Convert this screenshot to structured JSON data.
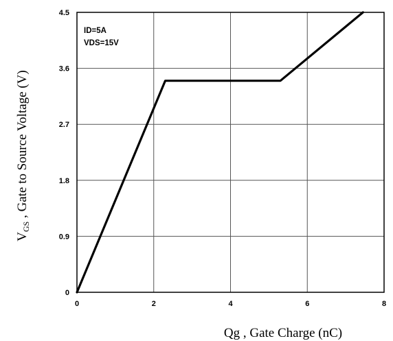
{
  "chart_data": {
    "type": "line",
    "xlabel": "Qg , Gate Charge (nC)",
    "ylabel": "V",
    "ylabel_sub": "GS",
    "ylabel_rest": " , Gate to Source Voltage (V)",
    "xlim": [
      0,
      8
    ],
    "ylim": [
      0,
      4.5
    ],
    "x_ticks": [
      "0",
      "2",
      "4",
      "6",
      "8"
    ],
    "y_ticks": [
      "0",
      "0.9",
      "1.8",
      "2.7",
      "3.6",
      "4.5"
    ],
    "grid": true,
    "annotations": [
      "ID=5A",
      "VDS=15V"
    ],
    "series": [
      {
        "x": [
          0,
          2.3,
          5.3,
          7.45
        ],
        "y": [
          0,
          3.4,
          3.4,
          4.5
        ]
      }
    ]
  }
}
